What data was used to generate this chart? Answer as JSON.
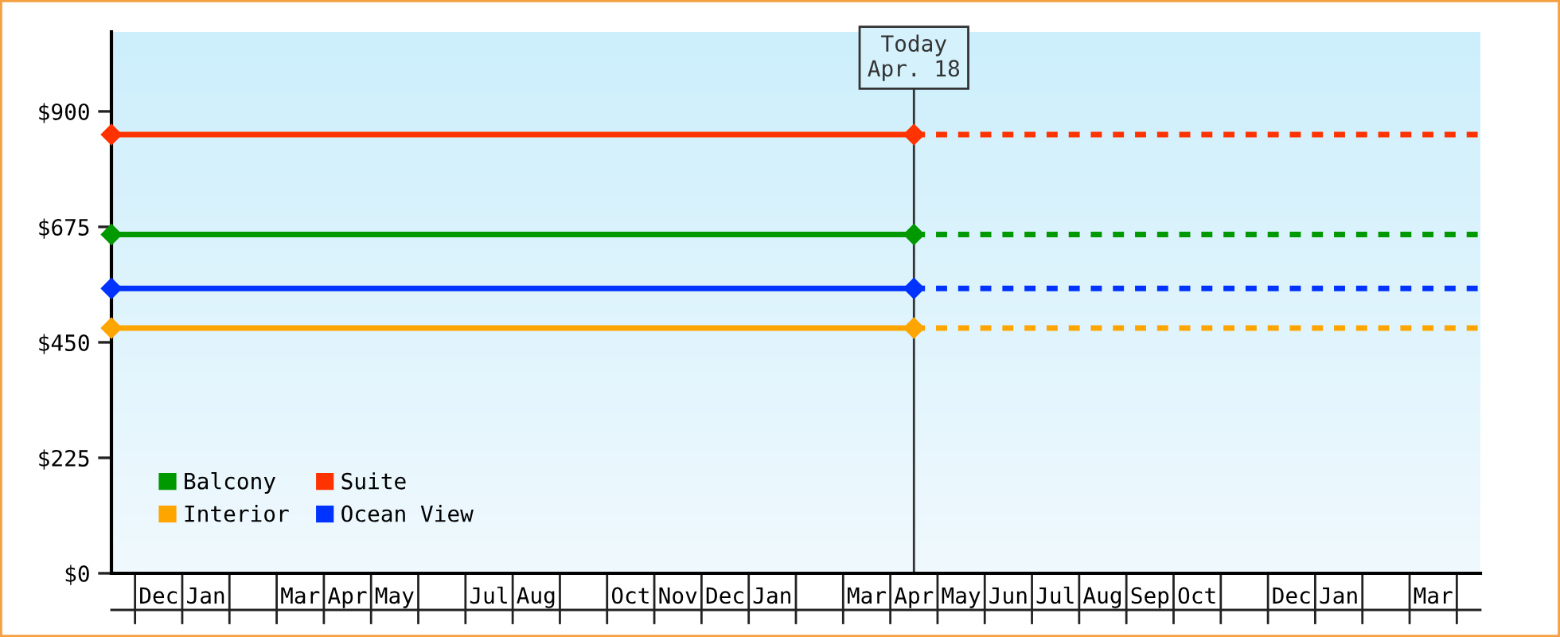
{
  "chart_data": {
    "type": "line",
    "categories": [
      null,
      "Dec",
      "Jan",
      null,
      "Mar",
      "Apr",
      "May",
      null,
      "Jul",
      "Aug",
      null,
      "Oct",
      "Nov",
      "Dec",
      "Jan",
      null,
      "Mar",
      "Apr",
      "May",
      "Jun",
      "Jul",
      "Aug",
      "Sep",
      "Oct",
      null,
      "Dec",
      "Jan",
      null,
      "Mar",
      null
    ],
    "series": [
      {
        "name": "Balcony",
        "color": "#009900",
        "values": [
          660,
          null,
          null,
          null,
          null,
          null,
          null,
          null,
          null,
          null,
          null,
          null,
          null,
          null,
          null,
          null,
          null,
          660,
          null,
          null,
          null,
          null,
          null,
          null,
          null,
          null,
          null,
          null,
          null,
          null
        ],
        "marker": "diamond",
        "line_style": "solid"
      },
      {
        "name": "Interior",
        "color": "#ffa500",
        "values": [
          478,
          null,
          null,
          null,
          null,
          null,
          null,
          null,
          null,
          null,
          null,
          null,
          null,
          null,
          null,
          null,
          null,
          478,
          null,
          null,
          null,
          null,
          null,
          null,
          null,
          null,
          null,
          null,
          null,
          null
        ],
        "marker": "diamond",
        "line_style": "solid"
      },
      {
        "name": "Suite",
        "color": "#ff3300",
        "values": [
          855,
          null,
          null,
          null,
          null,
          null,
          null,
          null,
          null,
          null,
          null,
          null,
          null,
          null,
          null,
          null,
          null,
          855,
          null,
          null,
          null,
          null,
          null,
          null,
          null,
          null,
          null,
          null,
          null,
          null
        ],
        "marker": "diamond",
        "line_style": "solid"
      },
      {
        "name": "Ocean View",
        "color": "#0033ff",
        "values": [
          555,
          null,
          null,
          null,
          null,
          null,
          null,
          null,
          null,
          null,
          null,
          null,
          null,
          null,
          null,
          null,
          null,
          555,
          null,
          null,
          null,
          null,
          null,
          null,
          null,
          null,
          null,
          null,
          null,
          null
        ],
        "marker": "diamond",
        "line_style": "solid"
      },
      {
        "color": "#009900",
        "values": [
          null,
          null,
          null,
          null,
          null,
          null,
          null,
          null,
          null,
          null,
          null,
          null,
          null,
          null,
          null,
          null,
          null,
          660,
          null,
          null,
          null,
          null,
          null,
          null,
          null,
          null,
          null,
          null,
          null,
          660
        ],
        "line_style": "dotted"
      },
      {
        "color": "#ffa500",
        "values": [
          null,
          null,
          null,
          null,
          null,
          null,
          null,
          null,
          null,
          null,
          null,
          null,
          null,
          null,
          null,
          null,
          null,
          478,
          null,
          null,
          null,
          null,
          null,
          null,
          null,
          null,
          null,
          null,
          null,
          478
        ],
        "line_style": "dotted"
      },
      {
        "color": "#ff3300",
        "values": [
          null,
          null,
          null,
          null,
          null,
          null,
          null,
          null,
          null,
          null,
          null,
          null,
          null,
          null,
          null,
          null,
          null,
          855,
          null,
          null,
          null,
          null,
          null,
          null,
          null,
          null,
          null,
          null,
          null,
          855
        ],
        "line_style": "dotted"
      },
      {
        "color": "#0033ff",
        "values": [
          null,
          null,
          null,
          null,
          null,
          null,
          null,
          null,
          null,
          null,
          null,
          null,
          null,
          null,
          null,
          null,
          null,
          555,
          null,
          null,
          null,
          null,
          null,
          null,
          null,
          null,
          null,
          null,
          null,
          555
        ],
        "line_style": "dotted"
      }
    ],
    "ylim": [
      0,
      1055
    ],
    "yticks": [
      {
        "value": 0,
        "label": "$0"
      },
      {
        "value": 225,
        "label": "$225"
      },
      {
        "value": 450,
        "label": "$450"
      },
      {
        "value": 675,
        "label": "$675"
      },
      {
        "value": 900,
        "label": "$900"
      }
    ],
    "annotations": [
      "Today\nApr. 18"
    ],
    "legend": "bottom left"
  }
}
